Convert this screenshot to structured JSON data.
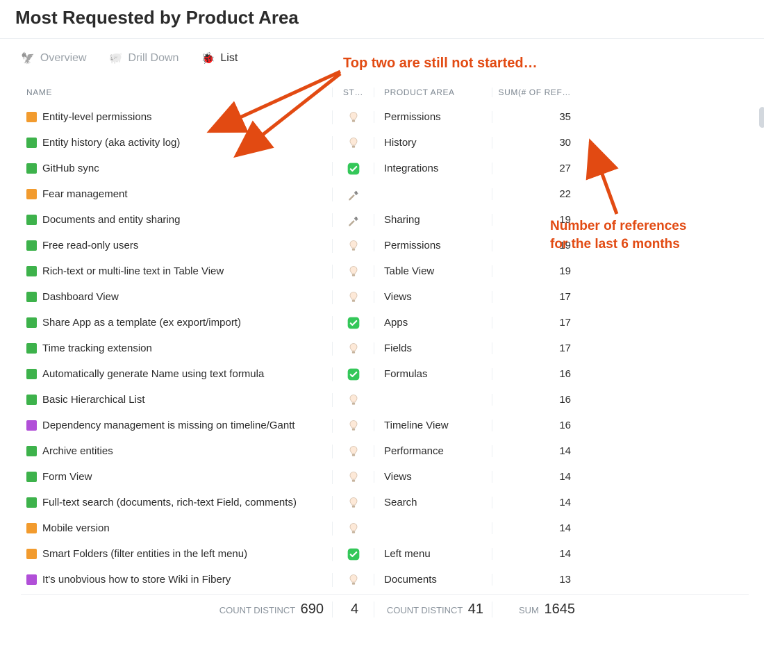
{
  "title": "Most Requested by Product Area",
  "tabs": [
    {
      "id": "overview",
      "emoji": "🦅",
      "label": "Overview",
      "active": false
    },
    {
      "id": "drilldown",
      "emoji": "🐖",
      "label": "Drill Down",
      "active": false
    },
    {
      "id": "list",
      "emoji": "🐞",
      "label": "List",
      "active": true
    }
  ],
  "columns": {
    "name": "NAME",
    "status": "ST…",
    "area": "PRODUCT AREA",
    "ref": "SUM(# OF REF…"
  },
  "status_icons": {
    "idea": "bulb",
    "done": "check",
    "build": "hammer"
  },
  "swatch_colors": {
    "orange": "#f29b2e",
    "green": "#3db24b",
    "purple": "#b14fd8"
  },
  "annotations": {
    "top": "Top two are still not started…",
    "right_l1": "Number of references",
    "right_l2": "for the last 6 months",
    "color": "#e24a12"
  },
  "rows": [
    {
      "swatch": "orange",
      "name": "Entity-level permissions",
      "status": "idea",
      "area": "Permissions",
      "ref": 35
    },
    {
      "swatch": "green",
      "name": "Entity history (aka activity log)",
      "status": "idea",
      "area": "History",
      "ref": 30
    },
    {
      "swatch": "green",
      "name": "GitHub sync",
      "status": "done",
      "area": "Integrations",
      "ref": 27
    },
    {
      "swatch": "orange",
      "name": "Fear management",
      "status": "build",
      "area": "",
      "ref": 22
    },
    {
      "swatch": "green",
      "name": "Documents and entity sharing",
      "status": "build",
      "area": "Sharing",
      "ref": 19
    },
    {
      "swatch": "green",
      "name": "Free read-only users",
      "status": "idea",
      "area": "Permissions",
      "ref": 19
    },
    {
      "swatch": "green",
      "name": "Rich-text or multi-line text in Table View",
      "status": "idea",
      "area": "Table View",
      "ref": 19
    },
    {
      "swatch": "green",
      "name": "Dashboard View",
      "status": "idea",
      "area": "Views",
      "ref": 17
    },
    {
      "swatch": "green",
      "name": "Share App as a template (ex export/import)",
      "status": "done",
      "area": "Apps",
      "ref": 17
    },
    {
      "swatch": "green",
      "name": "Time tracking extension",
      "status": "idea",
      "area": "Fields",
      "ref": 17
    },
    {
      "swatch": "green",
      "name": "Automatically generate Name using text formula",
      "status": "done",
      "area": "Formulas",
      "ref": 16
    },
    {
      "swatch": "green",
      "name": "Basic Hierarchical List",
      "status": "idea",
      "area": "",
      "ref": 16
    },
    {
      "swatch": "purple",
      "name": "Dependency management is missing on timeline/Gantt",
      "status": "idea",
      "area": "Timeline View",
      "ref": 16
    },
    {
      "swatch": "green",
      "name": "Archive entities",
      "status": "idea",
      "area": "Performance",
      "ref": 14
    },
    {
      "swatch": "green",
      "name": "Form View",
      "status": "idea",
      "area": "Views",
      "ref": 14
    },
    {
      "swatch": "green",
      "name": "Full-text search (documents, rich-text Field, comments)",
      "status": "idea",
      "area": "Search",
      "ref": 14
    },
    {
      "swatch": "orange",
      "name": "Mobile version",
      "status": "idea",
      "area": "",
      "ref": 14
    },
    {
      "swatch": "orange",
      "name": "Smart Folders (filter entities in the left menu)",
      "status": "done",
      "area": "Left menu",
      "ref": 14
    },
    {
      "swatch": "purple",
      "name": "It's unobvious how to store Wiki in Fibery",
      "status": "idea",
      "area": "Documents",
      "ref": 13
    }
  ],
  "footer": {
    "name_label": "COUNT DISTINCT",
    "name_value": "690",
    "status_value": "4",
    "area_label": "COUNT DISTINCT",
    "area_value": "41",
    "ref_label": "SUM",
    "ref_value": "1645"
  }
}
